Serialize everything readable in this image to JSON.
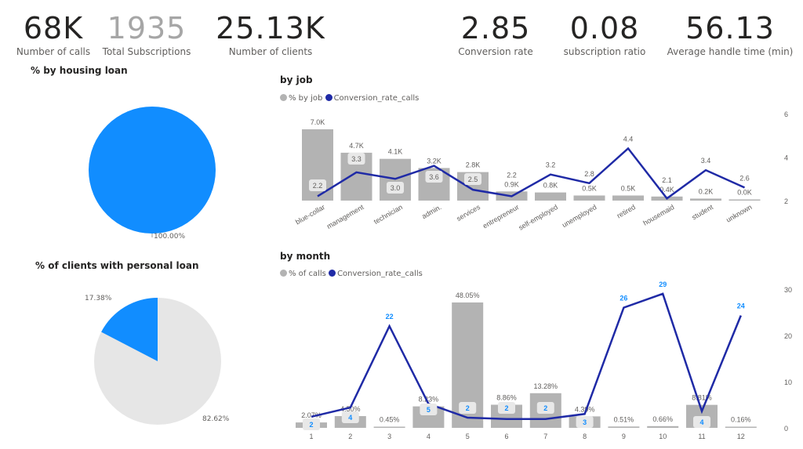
{
  "kpis": [
    {
      "value": "68K",
      "label": "Number of calls"
    },
    {
      "value": "1935",
      "label": "Total Subscriptions"
    },
    {
      "value": "25.13K",
      "label": "Number of clients"
    },
    {
      "value": "2.85",
      "label": "Conversion rate"
    },
    {
      "value": "0.08",
      "label": "subscription ratio"
    },
    {
      "value": "56.13",
      "label": "Average handle time (min)"
    }
  ],
  "colors": {
    "bar": "#b3b3b3",
    "line": "#1f2aa6",
    "pie_blue": "#118dff",
    "pie_gray": "#e6e6e6",
    "month_label": "#118dff"
  },
  "housing": {
    "title": "% by housing loan",
    "label": "100.00%"
  },
  "personal": {
    "title": "% of clients with personal loan",
    "yes_label": "17.38%",
    "no_label": "82.62%",
    "yes_pct": 17.38,
    "no_pct": 82.62
  },
  "chart_data": [
    {
      "type": "bar+line",
      "title": "by job",
      "legend": [
        "% by job",
        "Conversion_rate_calls"
      ],
      "categories": [
        "blue-collar",
        "management",
        "technician",
        "admin.",
        "services",
        "entrepreneur",
        "self-employed",
        "unemployed",
        "retired",
        "housemaid",
        "student",
        "unknown"
      ],
      "bar_values": [
        7.0,
        4.7,
        4.1,
        3.2,
        2.8,
        0.9,
        0.8,
        0.5,
        0.5,
        0.4,
        0.2,
        0.0
      ],
      "bar_labels": [
        "7.0K",
        "4.7K",
        "4.1K",
        "3.2K",
        "2.8K",
        "0.9K",
        "0.8K",
        "0.5K",
        "0.5K",
        "0.4K",
        "0.2K",
        "0.0K"
      ],
      "line_values": [
        2.2,
        3.3,
        3.0,
        3.6,
        2.5,
        2.2,
        3.2,
        2.8,
        4.4,
        2.1,
        3.4,
        2.6
      ],
      "line_labels": [
        "2.2",
        "3.3",
        "3.0",
        "3.6",
        "2.5",
        "2.2",
        "3.2",
        "2.8",
        "4.4",
        "2.1",
        "3.4",
        "2.6"
      ],
      "y2_ticks": [
        "2",
        "4",
        "6"
      ],
      "y2lim": [
        2,
        6
      ]
    },
    {
      "type": "bar+line",
      "title": "by month",
      "legend": [
        "% of calls",
        "Conversion_rate_calls"
      ],
      "categories": [
        "1",
        "2",
        "3",
        "4",
        "5",
        "6",
        "7",
        "8",
        "9",
        "10",
        "11",
        "12"
      ],
      "bar_values": [
        2.07,
        4.5,
        0.45,
        8.23,
        48.05,
        8.86,
        13.28,
        4.39,
        0.51,
        0.66,
        8.81,
        0.16
      ],
      "bar_labels": [
        "2.07%",
        "4.50%",
        "0.45%",
        "8.23%",
        "48.05%",
        "8.86%",
        "13.28%",
        "4.39%",
        "0.51%",
        "0.66%",
        "8.81%",
        "0.16%"
      ],
      "line_values": [
        2.4,
        4.4,
        22,
        5.2,
        2.2,
        1.9,
        1.9,
        3,
        26,
        29,
        3.6,
        24.3
      ],
      "line_labels": [
        "2",
        "4",
        "22",
        "5",
        "2",
        "2",
        "2",
        "3",
        "26",
        "29",
        "4",
        "24"
      ],
      "y2_ticks": [
        "0",
        "10",
        "20",
        "30"
      ],
      "y2lim": [
        0,
        30
      ]
    }
  ]
}
